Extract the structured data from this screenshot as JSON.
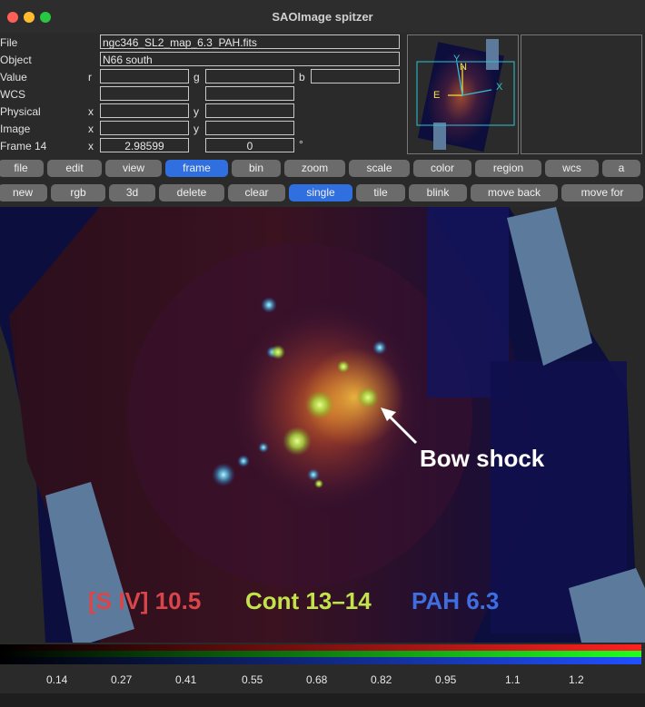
{
  "window": {
    "title": "SAOImage spitzer"
  },
  "info": {
    "file_label": "File",
    "file_value": "ngc346_SL2_map_6.3_PAH.fits",
    "object_label": "Object",
    "object_value": "N66 south",
    "value_label": "Value",
    "value_r": "r",
    "value_g": "g",
    "value_b": "b",
    "wcs_label": "WCS",
    "physical_label": "Physical",
    "physical_x": "x",
    "physical_y": "y",
    "image_label": "Image",
    "image_x": "x",
    "image_y": "y",
    "frame_label": "Frame 14",
    "frame_x": "x",
    "frame_zoom": "2.98599",
    "frame_angle": "0",
    "frame_deg": "°"
  },
  "panner": {
    "north": "N",
    "east": "E",
    "x": "X",
    "y": "Y"
  },
  "menu": [
    "file",
    "edit",
    "view",
    "frame",
    "bin",
    "zoom",
    "scale",
    "color",
    "region",
    "wcs",
    "a"
  ],
  "menu_active": "frame",
  "frame_buttons": [
    "new",
    "rgb",
    "3d",
    "delete",
    "clear",
    "single",
    "tile",
    "blink",
    "move back",
    "move for"
  ],
  "frame_active": "single",
  "annotation": {
    "label": "Bow shock"
  },
  "legend": {
    "red": "[S IV] 10.5",
    "green": "Cont 13–14",
    "blue": "PAH 6.3",
    "red_color": "#d9464a",
    "green_color": "#c3e34a",
    "blue_color": "#3f6ee0"
  },
  "colorbar": {
    "ticks": [
      "0.14",
      "0.27",
      "0.41",
      "0.55",
      "0.68",
      "0.82",
      "0.95",
      "1.1",
      "1.2"
    ]
  }
}
